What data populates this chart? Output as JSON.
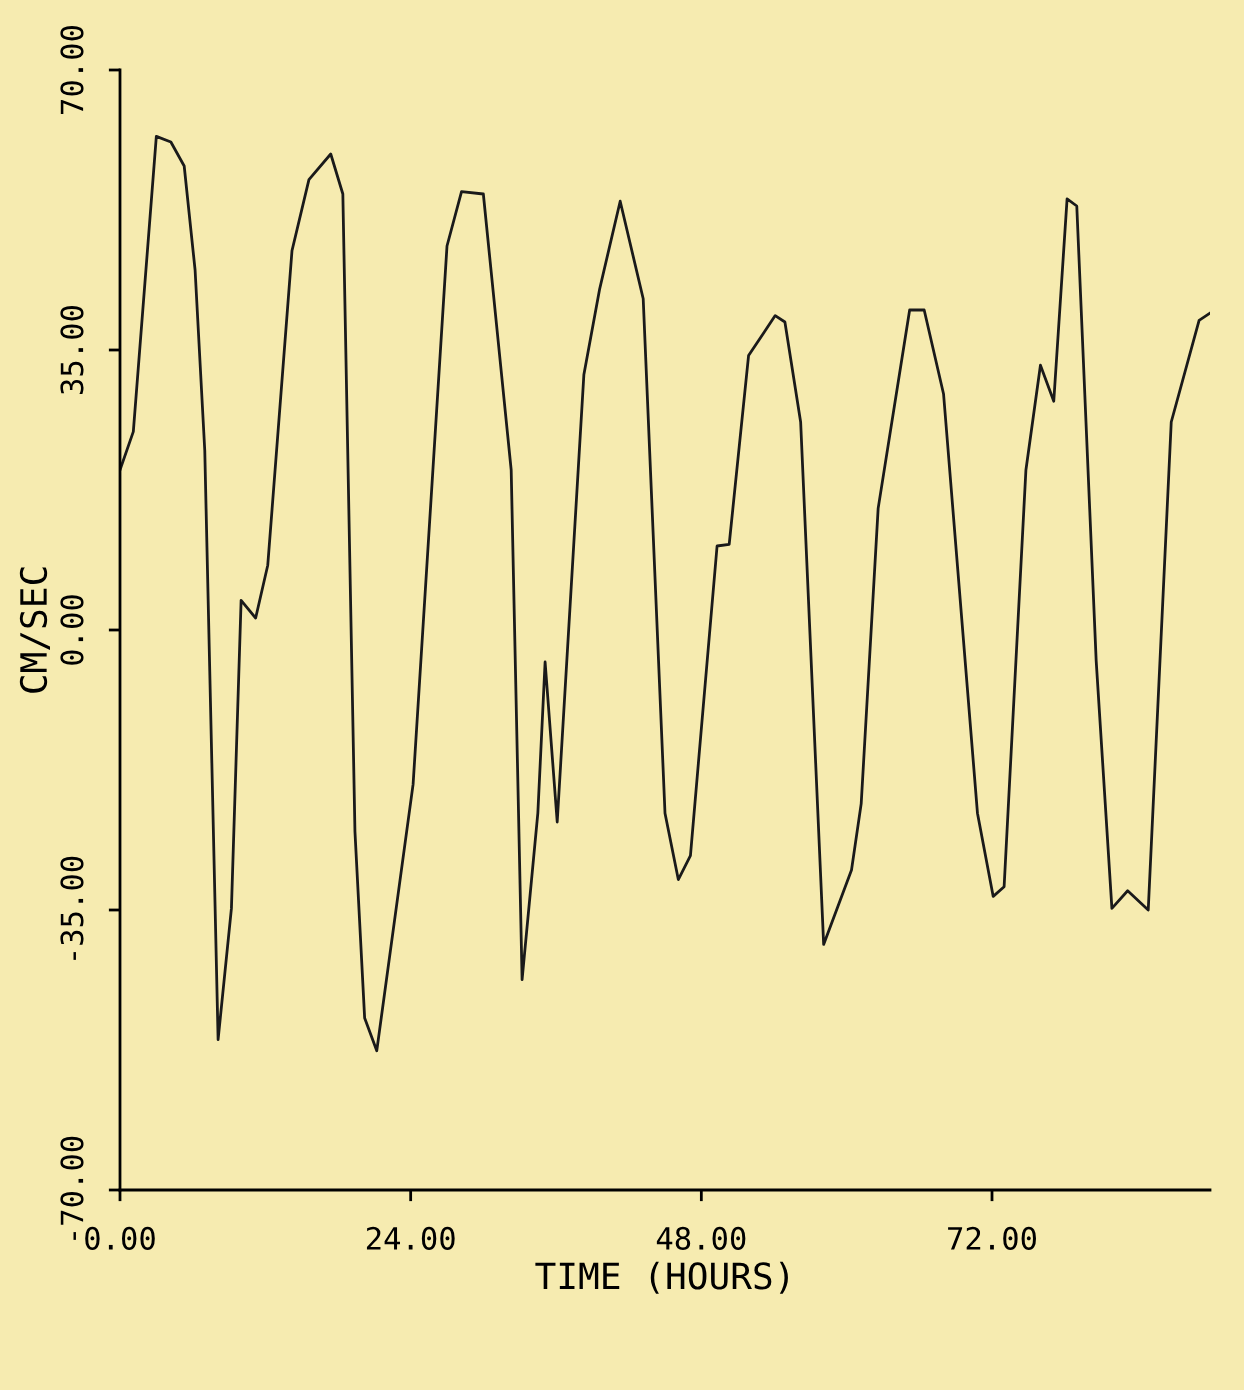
{
  "chart_data": {
    "type": "line",
    "xlabel": "TIME (HOURS)",
    "ylabel": "CM/SEC",
    "color": "#1a1a1a",
    "x": [
      0,
      1.1,
      3.0,
      4.2,
      5.3,
      6.2,
      7.0,
      8.1,
      9.2,
      10.0,
      11.2,
      12.2,
      14.2,
      15.6,
      17.4,
      18.4,
      19.4,
      20.2,
      21.2,
      24.2,
      27.0,
      28.2,
      30.0,
      32.3,
      33.2,
      34.5,
      35.1,
      36.1,
      38.3,
      39.6,
      41.3,
      43.2,
      45.0,
      46.1,
      47.1,
      49.3,
      50.3,
      51.9,
      54.1,
      54.9,
      56.2,
      58.1,
      60.4,
      61.2,
      62.6,
      65.2,
      66.4,
      68.0,
      70.8,
      72.1,
      73.0,
      74.8,
      76.0,
      77.1,
      78.2,
      79.0,
      80.6,
      81.9,
      83.2,
      84.9,
      86.8,
      89.1,
      90.0
    ],
    "values": [
      20,
      24.8,
      61.7,
      61,
      58,
      45,
      22.4,
      -51.2,
      -34.8,
      3.7,
      1.5,
      8.1,
      47.4,
      56.3,
      59.5,
      54.5,
      -25.2,
      -48.5,
      -52.6,
      -19.3,
      48,
      54.8,
      54.5,
      20,
      -43.7,
      -22.9,
      -4,
      -24,
      31.9,
      42.6,
      53.6,
      41.4,
      -22.9,
      -31.2,
      -28.2,
      10.5,
      10.7,
      34.3,
      39.3,
      38.5,
      26,
      -39.3,
      -30,
      -21.7,
      15.2,
      40,
      40,
      29.5,
      -22.9,
      -33.3,
      -32.1,
      20,
      33.1,
      28.6,
      53.9,
      53,
      -3.8,
      -34.8,
      -32.6,
      -35,
      26,
      38.7,
      39.6
    ],
    "xlim": [
      0,
      90
    ],
    "ylim": [
      -70,
      70
    ],
    "xticks": [
      {
        "value": 0,
        "label": "0.00"
      },
      {
        "value": 24,
        "label": "24.00"
      },
      {
        "value": 48,
        "label": "48.00"
      },
      {
        "value": 72,
        "label": "72.00"
      }
    ],
    "yticks": [
      {
        "value": -70,
        "label": "-70.00"
      },
      {
        "value": -35,
        "label": "-35.00"
      },
      {
        "value": 0,
        "label": "0.00"
      },
      {
        "value": 35,
        "label": "35.00"
      },
      {
        "value": 70,
        "label": "70.00"
      }
    ]
  }
}
